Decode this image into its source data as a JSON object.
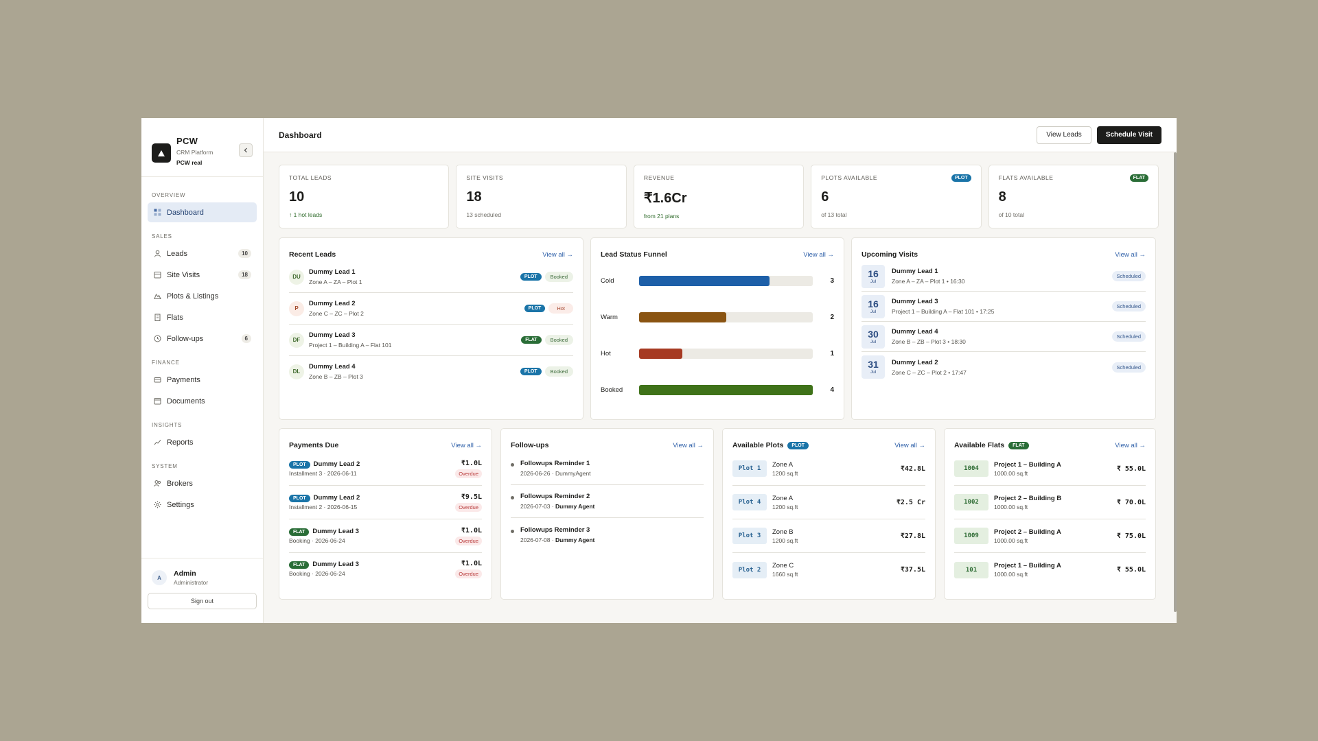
{
  "brand": {
    "name": "PCW",
    "subtitle": "CRM Platform",
    "org": "PCW real"
  },
  "sidebar": {
    "sections": [
      "OVERVIEW",
      "SALES",
      "FINANCE",
      "INSIGHTS",
      "SYSTEM"
    ],
    "items": [
      {
        "label": "Dashboard",
        "icon": "grid-icon",
        "active": true
      },
      {
        "label": "Leads",
        "icon": "user-icon",
        "count": "10"
      },
      {
        "label": "Site Visits",
        "icon": "calendar-icon",
        "count": "18"
      },
      {
        "label": "Plots & Listings",
        "icon": "map-icon"
      },
      {
        "label": "Flats",
        "icon": "building-icon"
      },
      {
        "label": "Follow-ups",
        "icon": "clock-icon",
        "count": "6"
      },
      {
        "label": "Payments",
        "icon": "card-icon"
      },
      {
        "label": "Documents",
        "icon": "folder-icon"
      },
      {
        "label": "Reports",
        "icon": "trend-icon"
      },
      {
        "label": "Brokers",
        "icon": "users-icon"
      },
      {
        "label": "Settings",
        "icon": "gear-icon"
      }
    ],
    "user": {
      "initial": "A",
      "name": "Admin",
      "role": "Administrator",
      "signout": "Sign out"
    }
  },
  "header": {
    "title": "Dashboard",
    "view_leads": "View Leads",
    "schedule_visit": "Schedule Visit"
  },
  "kpis": [
    {
      "label": "TOTAL LEADS",
      "value": "10",
      "sub": "↑ 1 hot leads",
      "sub_style": "green"
    },
    {
      "label": "SITE VISITS",
      "value": "18",
      "sub": "13 scheduled"
    },
    {
      "label": "REVENUE",
      "value": "₹1.6Cr",
      "sub": "from 21 plans",
      "sub_style": "green"
    },
    {
      "label": "PLOTS AVAILABLE",
      "value": "6",
      "sub": "of 13 total",
      "badge": "PLOT"
    },
    {
      "label": "FLATS AVAILABLE",
      "value": "8",
      "sub": "of 10 total",
      "badge": "FLAT"
    }
  ],
  "view_all": "View all →",
  "recent_leads": {
    "title": "Recent Leads",
    "rows": [
      {
        "initials": "DU",
        "name": "Dummy Lead 1",
        "detail": "Zone A – ZA – Plot 1",
        "type": "PLOT",
        "status": "Booked"
      },
      {
        "initials": "P",
        "name": "Dummy Lead 2",
        "detail": "Zone C – ZC – Plot 2",
        "type": "PLOT",
        "status": "Hot"
      },
      {
        "initials": "DF",
        "name": "Dummy Lead 3",
        "detail": "Project 1 – Building A – Flat 101",
        "type": "FLAT",
        "status": "Booked"
      },
      {
        "initials": "DL",
        "name": "Dummy Lead 4",
        "detail": "Zone B – ZB – Plot 3",
        "type": "PLOT",
        "status": "Booked"
      }
    ]
  },
  "funnel": {
    "title": "Lead Status Funnel",
    "max": 4,
    "rows": [
      {
        "label": "Cold",
        "count": 3,
        "color": "#1d5fa8"
      },
      {
        "label": "Warm",
        "count": 2,
        "color": "#8a5412"
      },
      {
        "label": "Hot",
        "count": 1,
        "color": "#a63a22"
      },
      {
        "label": "Booked",
        "count": 4,
        "color": "#3f7219"
      }
    ]
  },
  "visits": {
    "title": "Upcoming Visits",
    "rows": [
      {
        "day": "16",
        "month": "Jul",
        "name": "Dummy Lead 1",
        "detail": "Zone A – ZA – Plot 1 • 16:30",
        "status": "Scheduled"
      },
      {
        "day": "16",
        "month": "Jul",
        "name": "Dummy Lead 3",
        "detail": "Project 1 – Building A – Flat 101 • 17:25",
        "status": "Scheduled"
      },
      {
        "day": "30",
        "month": "Jul",
        "name": "Dummy Lead 4",
        "detail": "Zone B – ZB – Plot 3 • 18:30",
        "status": "Scheduled"
      },
      {
        "day": "31",
        "month": "Jul",
        "name": "Dummy Lead 2",
        "detail": "Zone C – ZC – Plot 2 • 17:47",
        "status": "Scheduled"
      }
    ]
  },
  "payments": {
    "title": "Payments Due",
    "rows": [
      {
        "type": "PLOT",
        "name": "Dummy Lead 2",
        "detail": "Installment 3 · 2026-06-11",
        "amount": "₹1.0L",
        "status": "Overdue"
      },
      {
        "type": "PLOT",
        "name": "Dummy Lead 2",
        "detail": "Installment 2 · 2026-06-15",
        "amount": "₹9.5L",
        "status": "Overdue"
      },
      {
        "type": "FLAT",
        "name": "Dummy Lead 3",
        "detail": "Booking · 2026-06-24",
        "amount": "₹1.0L",
        "status": "Overdue"
      },
      {
        "type": "FLAT",
        "name": "Dummy Lead 3",
        "detail": "Booking · 2026-06-24",
        "amount": "₹1.0L",
        "status": "Overdue"
      }
    ]
  },
  "followups": {
    "title": "Follow-ups",
    "rows": [
      {
        "title": "Followups Reminder 1",
        "date": "2026-06-26",
        "agent": "DummyAgent",
        "agent_bold": false
      },
      {
        "title": "Followups Reminder 2",
        "date": "2026-07-03",
        "agent": "Dummy Agent",
        "agent_bold": true
      },
      {
        "title": "Followups Reminder 3",
        "date": "2026-07-08",
        "agent": "Dummy Agent",
        "agent_bold": true
      }
    ]
  },
  "plots": {
    "title": "Available Plots",
    "badge": "PLOT",
    "rows": [
      {
        "code": "Plot 1",
        "zone": "Zone A",
        "area": "1200 sq.ft",
        "price": "₹42.8L"
      },
      {
        "code": "Plot 4",
        "zone": "Zone A",
        "area": "1200 sq.ft",
        "price": "₹2.5 Cr"
      },
      {
        "code": "Plot 3",
        "zone": "Zone B",
        "area": "1200 sq.ft",
        "price": "₹27.8L"
      },
      {
        "code": "Plot 2",
        "zone": "Zone C",
        "area": "1660 sq.ft",
        "price": "₹37.5L"
      }
    ]
  },
  "flats": {
    "title": "Available Flats",
    "badge": "FLAT",
    "rows": [
      {
        "code": "1004",
        "project": "Project 1 – Building A",
        "area": "1000.00 sq.ft",
        "price": "₹ 55.0L"
      },
      {
        "code": "1002",
        "project": "Project 2 – Building B",
        "area": "1000.00 sq.ft",
        "price": "₹ 70.0L"
      },
      {
        "code": "1009",
        "project": "Project 2 – Building A",
        "area": "1000.00 sq.ft",
        "price": "₹ 75.0L"
      },
      {
        "code": "101",
        "project": "Project 1 – Building A",
        "area": "1000.00 sq.ft",
        "price": "₹ 55.0L"
      }
    ]
  },
  "colors": {
    "plot": "#1a74a8",
    "flat": "#2a6d37",
    "accent_link": "#2d5fa8"
  }
}
